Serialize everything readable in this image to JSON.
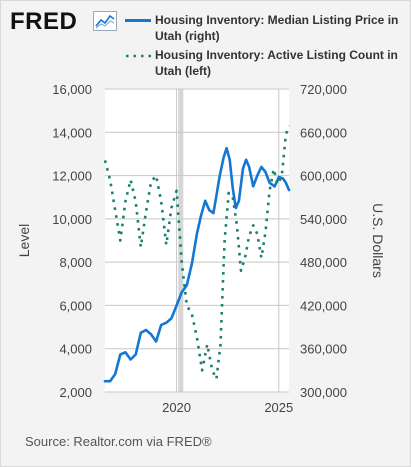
{
  "brand": {
    "logo_text": "FRED"
  },
  "legend": {
    "series_1": "Housing Inventory: Median Listing Price in Utah (right)",
    "series_2": "Housing Inventory: Active Listing Count in Utah (left)"
  },
  "source": "Source: Realtor.com via FRED®",
  "colors": {
    "price": "#1477d2",
    "count": "#1a7f6e",
    "grid": "#c8c8c8",
    "background": "#f3f3f3",
    "plot_bg": "#ffffff"
  },
  "chart_data": {
    "type": "line",
    "ylabel_left": "Level",
    "ylabel_right": "U.S. Dollars",
    "ylim_left": [
      2000,
      16000
    ],
    "ylim_right": [
      300000,
      720000
    ],
    "yticks_left": [
      "2,000",
      "4,000",
      "6,000",
      "8,000",
      "10,000",
      "12,000",
      "14,000",
      "16,000"
    ],
    "yticks_right": [
      "300,000",
      "360,000",
      "420,000",
      "480,000",
      "540,000",
      "600,000",
      "660,000",
      "720,000"
    ],
    "xlim": [
      2016.5,
      2025.5
    ],
    "xticks": [
      "2020",
      "2025"
    ],
    "recession": [
      2020.08,
      2020.33
    ],
    "series": [
      {
        "name": "Housing Inventory: Median Listing Price in Utah (right)",
        "axis": "right",
        "style": "solid",
        "points": [
          [
            2016.5,
            315000
          ],
          [
            2016.75,
            315000
          ],
          [
            2017.0,
            325000
          ],
          [
            2017.25,
            352000
          ],
          [
            2017.5,
            355000
          ],
          [
            2017.75,
            345000
          ],
          [
            2018.0,
            352000
          ],
          [
            2018.25,
            382000
          ],
          [
            2018.5,
            386000
          ],
          [
            2018.75,
            380000
          ],
          [
            2019.0,
            370000
          ],
          [
            2019.25,
            393000
          ],
          [
            2019.5,
            396000
          ],
          [
            2019.75,
            402000
          ],
          [
            2020.0,
            420000
          ],
          [
            2020.25,
            438000
          ],
          [
            2020.5,
            448000
          ],
          [
            2020.75,
            478000
          ],
          [
            2021.0,
            520000
          ],
          [
            2021.2,
            545000
          ],
          [
            2021.4,
            565000
          ],
          [
            2021.6,
            552000
          ],
          [
            2021.8,
            548000
          ],
          [
            2021.95,
            572000
          ],
          [
            2022.1,
            598000
          ],
          [
            2022.3,
            625000
          ],
          [
            2022.45,
            638000
          ],
          [
            2022.6,
            622000
          ],
          [
            2022.75,
            582000
          ],
          [
            2022.9,
            555000
          ],
          [
            2023.05,
            565000
          ],
          [
            2023.25,
            610000
          ],
          [
            2023.4,
            622000
          ],
          [
            2023.55,
            612000
          ],
          [
            2023.75,
            585000
          ],
          [
            2023.95,
            600000
          ],
          [
            2024.15,
            612000
          ],
          [
            2024.35,
            605000
          ],
          [
            2024.55,
            590000
          ],
          [
            2024.8,
            585000
          ],
          [
            2025.0,
            598000
          ],
          [
            2025.2,
            596000
          ],
          [
            2025.35,
            590000
          ],
          [
            2025.5,
            580000
          ]
        ]
      },
      {
        "name": "Housing Inventory: Active Listing Count in Utah (left)",
        "axis": "left",
        "style": "dotted",
        "points": [
          [
            2016.5,
            12700
          ],
          [
            2016.75,
            11800
          ],
          [
            2017.0,
            10400
          ],
          [
            2017.25,
            9000
          ],
          [
            2017.5,
            10800
          ],
          [
            2017.75,
            11800
          ],
          [
            2018.0,
            10800
          ],
          [
            2018.25,
            8700
          ],
          [
            2018.5,
            10300
          ],
          [
            2018.75,
            11700
          ],
          [
            2019.0,
            12000
          ],
          [
            2019.25,
            10800
          ],
          [
            2019.5,
            8800
          ],
          [
            2019.75,
            10500
          ],
          [
            2020.0,
            11300
          ],
          [
            2020.25,
            8000
          ],
          [
            2020.5,
            6000
          ],
          [
            2020.75,
            5600
          ],
          [
            2021.0,
            4500
          ],
          [
            2021.25,
            3000
          ],
          [
            2021.5,
            4200
          ],
          [
            2021.75,
            3000
          ],
          [
            2021.95,
            2600
          ],
          [
            2022.15,
            4200
          ],
          [
            2022.35,
            9000
          ],
          [
            2022.55,
            11200
          ],
          [
            2022.75,
            11000
          ],
          [
            2022.95,
            9700
          ],
          [
            2023.15,
            7600
          ],
          [
            2023.35,
            8200
          ],
          [
            2023.55,
            9200
          ],
          [
            2023.75,
            9700
          ],
          [
            2023.95,
            9300
          ],
          [
            2024.15,
            8200
          ],
          [
            2024.35,
            9400
          ],
          [
            2024.55,
            11300
          ],
          [
            2024.75,
            12300
          ],
          [
            2024.95,
            11600
          ],
          [
            2025.15,
            12000
          ],
          [
            2025.35,
            13900
          ],
          [
            2025.5,
            14300
          ]
        ]
      }
    ]
  }
}
